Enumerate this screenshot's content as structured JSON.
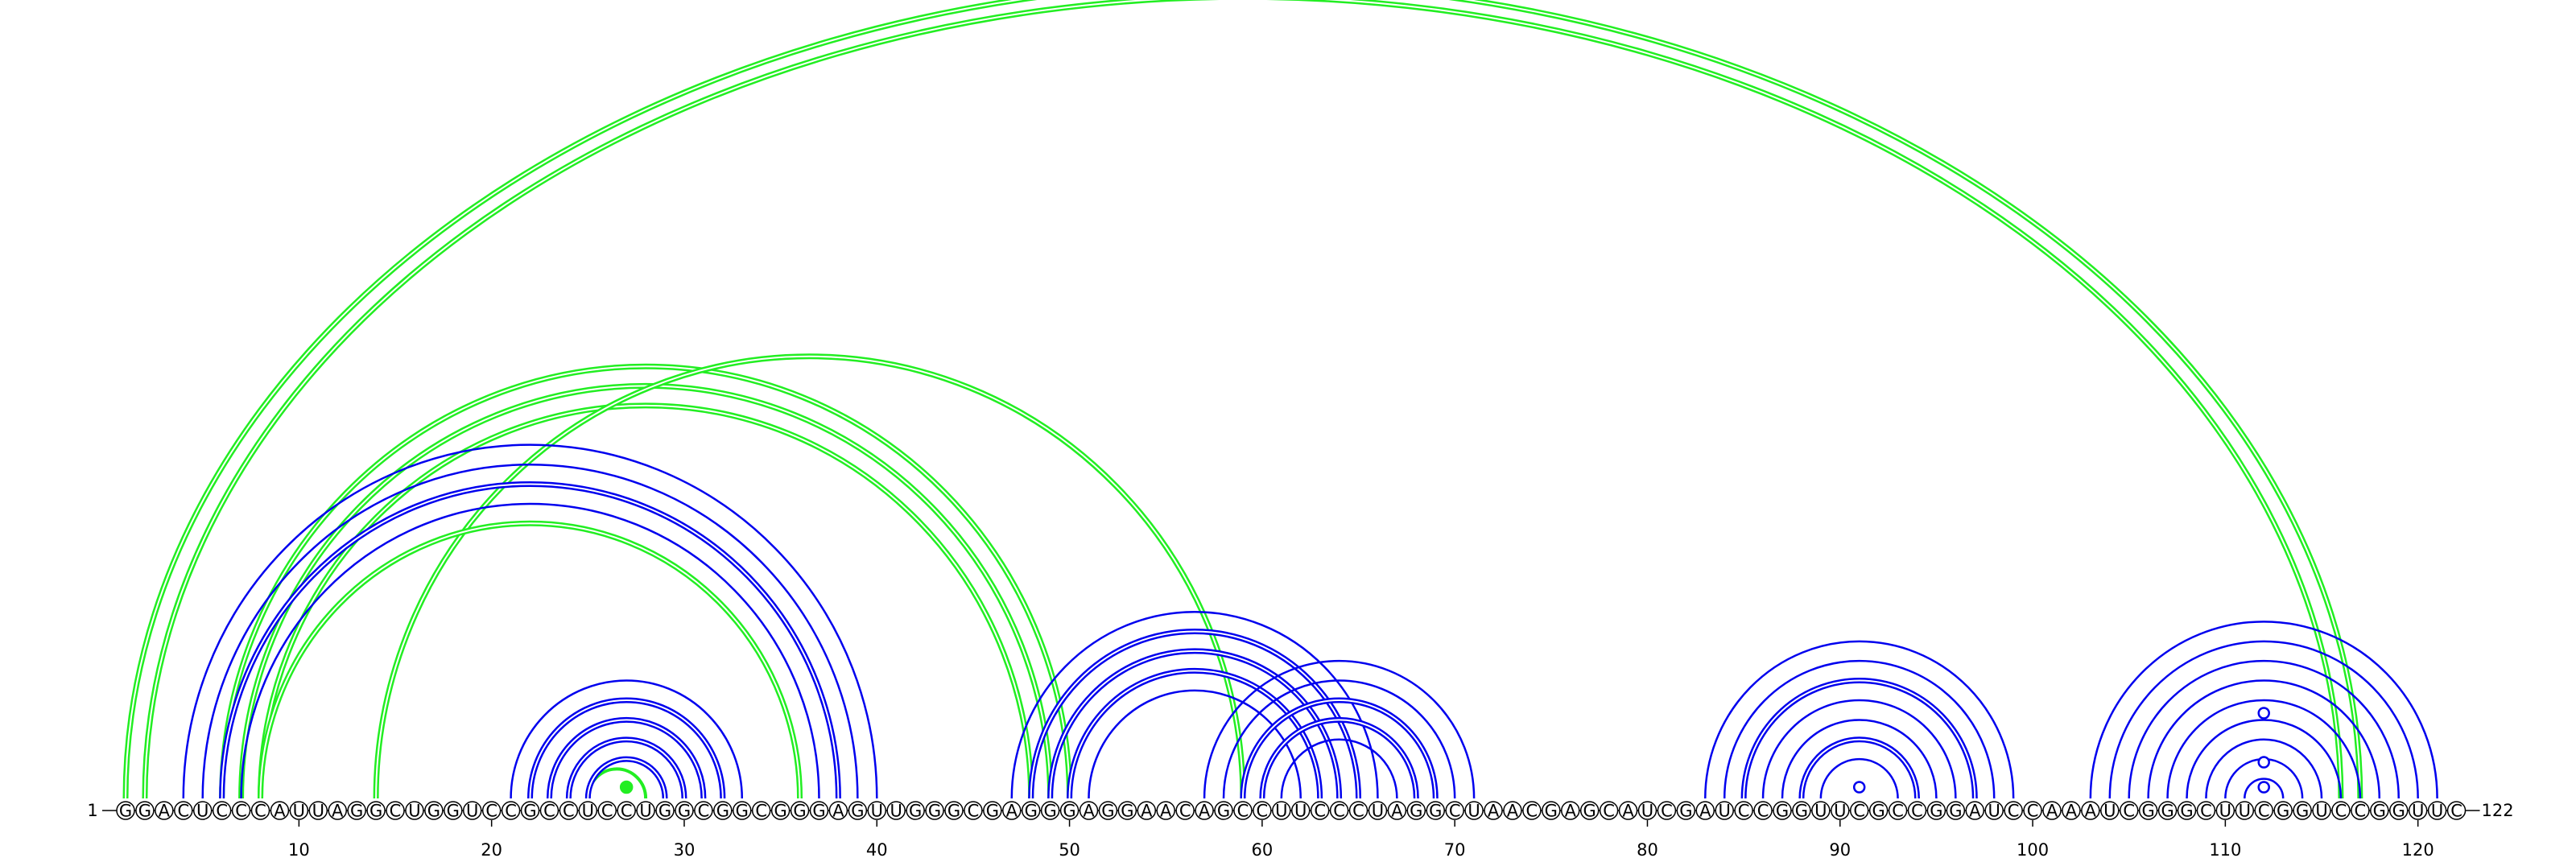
{
  "sequence": "GGACUCCCAUUAGGCUGGUCCGCCUCCUGGCGGCGGGAGUUGGGCGAGGGAGGAACAGCCUUCCCUAGGCUAACGAGCAUCGAUCCGGUUCGCCGGAUCCAAAUCGGGCUUCGGUCCGGUUC",
  "start_label": "1",
  "end_label": "122",
  "ticks": [
    10,
    20,
    30,
    40,
    50,
    60,
    70,
    80,
    90,
    100,
    110,
    120
  ],
  "colors": {
    "blue": "#0000ee",
    "green": "#22ee22"
  },
  "arcs": [
    {
      "i": 1,
      "j": 117,
      "color": "green",
      "double": true
    },
    {
      "i": 2,
      "j": 116,
      "color": "green",
      "double": true
    },
    {
      "i": 6,
      "j": 50,
      "color": "green",
      "double": true
    },
    {
      "i": 7,
      "j": 49,
      "color": "green",
      "double": true
    },
    {
      "i": 8,
      "j": 48,
      "color": "green",
      "double": true
    },
    {
      "i": 14,
      "j": 59,
      "color": "green",
      "double": true
    },
    {
      "i": 8,
      "j": 36,
      "color": "green",
      "double": true
    },
    {
      "i": 25,
      "j": 28,
      "color": "green",
      "double": false
    },
    {
      "i": 4,
      "j": 40,
      "color": "blue",
      "double": false
    },
    {
      "i": 5,
      "j": 39,
      "color": "blue",
      "double": false
    },
    {
      "i": 6,
      "j": 38,
      "color": "blue",
      "double": true
    },
    {
      "i": 7,
      "j": 37,
      "color": "blue",
      "double": false
    },
    {
      "i": 21,
      "j": 33,
      "color": "blue",
      "double": false
    },
    {
      "i": 22,
      "j": 32,
      "color": "blue",
      "double": true
    },
    {
      "i": 23,
      "j": 31,
      "color": "blue",
      "double": true
    },
    {
      "i": 24,
      "j": 30,
      "color": "blue",
      "double": true
    },
    {
      "i": 25,
      "j": 29,
      "color": "blue",
      "double": true
    },
    {
      "i": 47,
      "j": 66,
      "color": "blue",
      "double": false
    },
    {
      "i": 48,
      "j": 65,
      "color": "blue",
      "double": true
    },
    {
      "i": 49,
      "j": 64,
      "color": "blue",
      "double": true
    },
    {
      "i": 50,
      "j": 63,
      "color": "blue",
      "double": true
    },
    {
      "i": 51,
      "j": 62,
      "color": "blue",
      "double": false
    },
    {
      "i": 57,
      "j": 71,
      "color": "blue",
      "double": false
    },
    {
      "i": 58,
      "j": 70,
      "color": "blue",
      "double": false
    },
    {
      "i": 59,
      "j": 69,
      "color": "blue",
      "double": true
    },
    {
      "i": 60,
      "j": 68,
      "color": "blue",
      "double": true
    },
    {
      "i": 61,
      "j": 67,
      "color": "blue",
      "double": false
    },
    {
      "i": 83,
      "j": 99,
      "color": "blue",
      "double": false
    },
    {
      "i": 84,
      "j": 98,
      "color": "blue",
      "double": false
    },
    {
      "i": 85,
      "j": 97,
      "color": "blue",
      "double": true
    },
    {
      "i": 86,
      "j": 96,
      "color": "blue",
      "double": false
    },
    {
      "i": 87,
      "j": 95,
      "color": "blue",
      "double": false
    },
    {
      "i": 88,
      "j": 94,
      "color": "blue",
      "double": true
    },
    {
      "i": 89,
      "j": 93,
      "color": "blue",
      "double": false
    },
    {
      "i": 103,
      "j": 121,
      "color": "blue",
      "double": false
    },
    {
      "i": 104,
      "j": 120,
      "color": "blue",
      "double": false
    },
    {
      "i": 105,
      "j": 119,
      "color": "blue",
      "double": false
    },
    {
      "i": 106,
      "j": 118,
      "color": "blue",
      "double": false
    },
    {
      "i": 107,
      "j": 117,
      "color": "blue",
      "double": false
    },
    {
      "i": 108,
      "j": 116,
      "color": "blue",
      "double": false
    },
    {
      "i": 109,
      "j": 115,
      "color": "blue",
      "double": false
    },
    {
      "i": 110,
      "j": 114,
      "color": "blue",
      "double": false
    },
    {
      "i": 111,
      "j": 113,
      "color": "blue",
      "double": false
    }
  ],
  "markers": [
    {
      "pos": 27,
      "kind": "dot",
      "color": "green"
    },
    {
      "pos": 91,
      "kind": "ring",
      "color": "blue"
    },
    {
      "pos": 112,
      "kind": "ring",
      "color": "blue"
    },
    {
      "pos": 112,
      "kind": "ring",
      "color": "blue",
      "level": 2
    },
    {
      "pos": 112,
      "kind": "ring",
      "color": "blue",
      "level": 3
    }
  ]
}
